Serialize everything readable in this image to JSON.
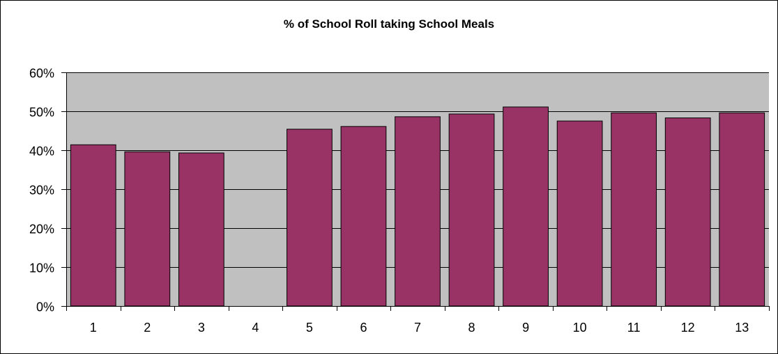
{
  "chart_data": {
    "type": "bar",
    "title": "% of School Roll taking School Meals",
    "xlabel": "",
    "ylabel": "",
    "categories": [
      "1",
      "2",
      "3",
      "4",
      "5",
      "6",
      "7",
      "8",
      "9",
      "10",
      "11",
      "12",
      "13"
    ],
    "values": [
      41.4,
      39.6,
      39.3,
      null,
      45.4,
      46.1,
      48.6,
      49.3,
      51.1,
      47.5,
      49.6,
      48.3,
      49.6
    ],
    "ylim": [
      0,
      60
    ],
    "yticks": [
      0,
      10,
      20,
      30,
      40,
      50,
      60
    ],
    "ytick_format": "%",
    "grid": true,
    "legend": "none",
    "colors": {
      "bar": "#993366",
      "plot_area": "#c0c0c0",
      "gridline": "#000000"
    }
  }
}
